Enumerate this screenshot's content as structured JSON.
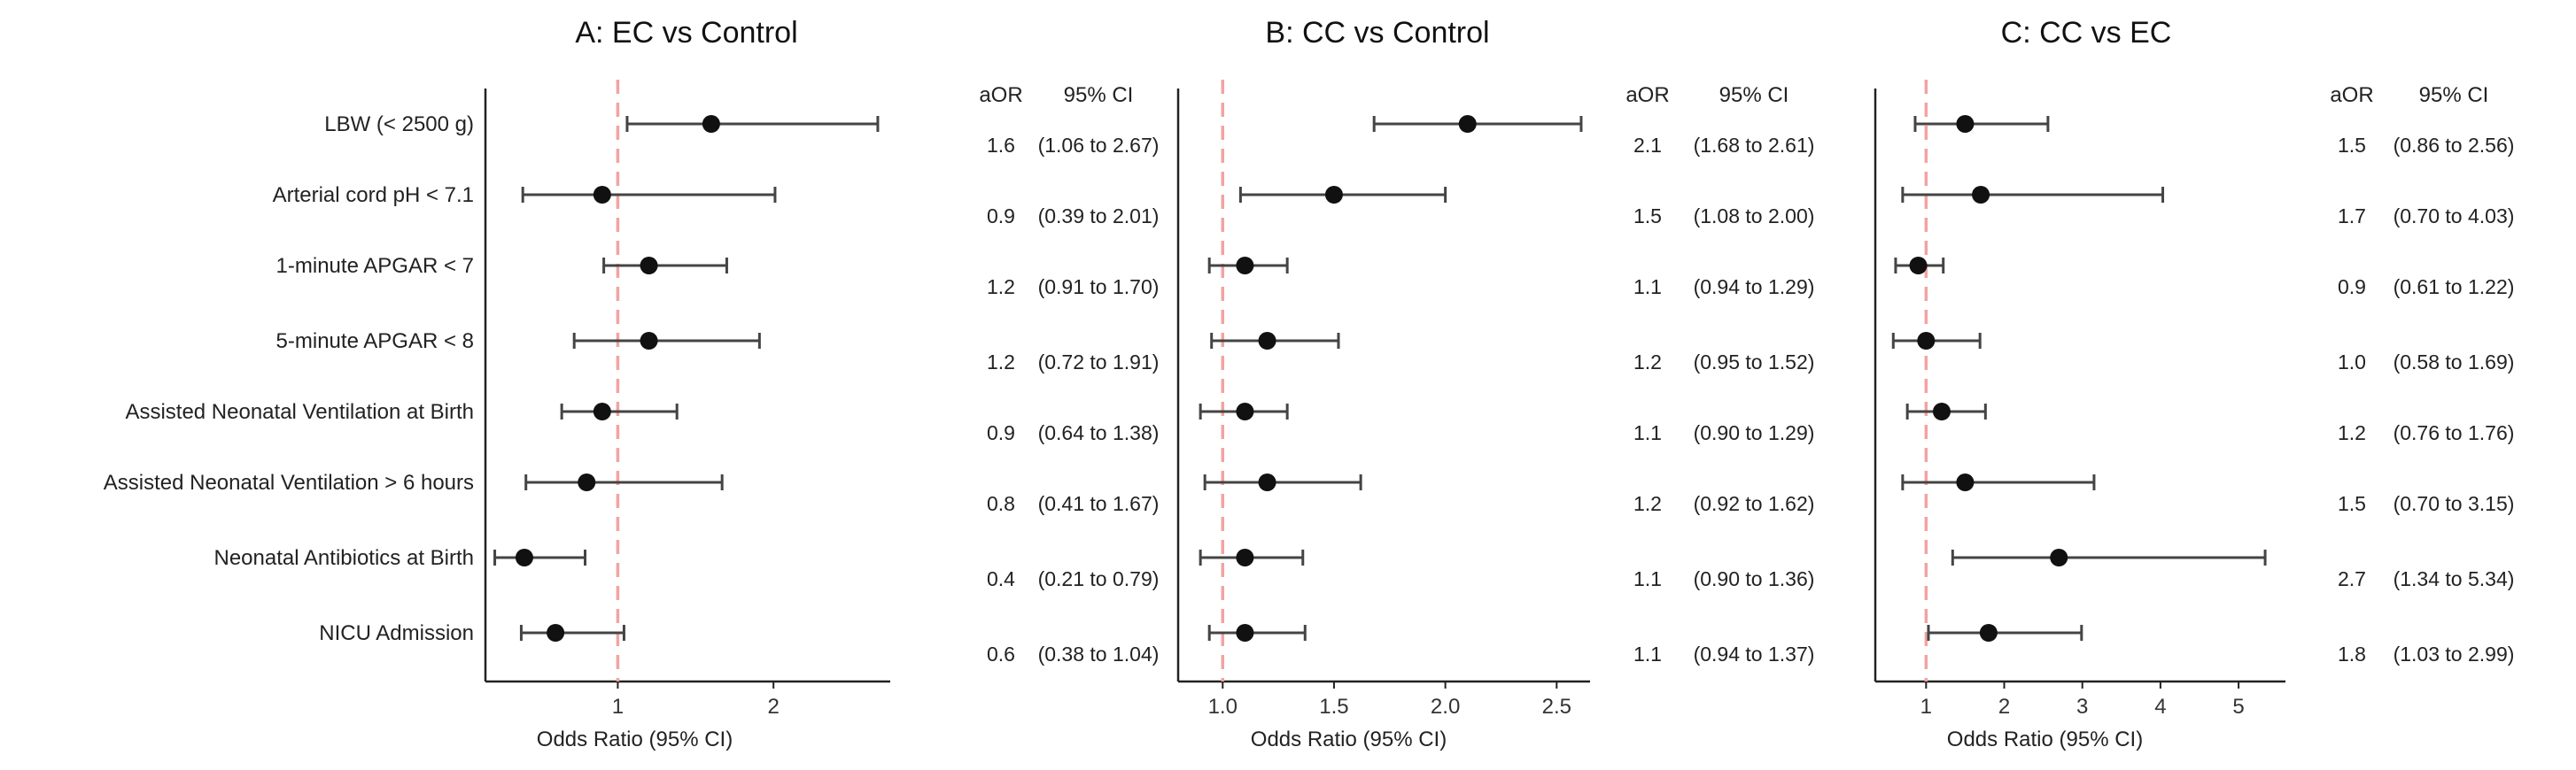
{
  "outcomes": [
    "LBW (< 2500 g)",
    "Arterial cord pH < 7.1",
    "1-minute APGAR < 7",
    "5-minute APGAR < 8",
    "Assisted Neonatal Ventilation at Birth",
    "Assisted Neonatal Ventilation > 6 hours",
    "Neonatal Antibiotics at Birth",
    "NICU Admission"
  ],
  "column_headers": {
    "aor": "aOR",
    "ci": "95% CI"
  },
  "colors": {
    "point": "#111111",
    "ci_line": "#444444",
    "reference_line": "#f2a3a3",
    "axis": "#222222"
  },
  "chart_data": [
    {
      "type": "forest",
      "title": "A: EC vs Control",
      "xlabel": "Odds Ratio (95% CI)",
      "ylabel": "",
      "reference_line": 1,
      "xlim": [
        0.15,
        2.75
      ],
      "x_ticks": [
        1,
        2
      ],
      "x_tick_labels": [
        "1",
        "2"
      ],
      "categories": [
        "LBW (< 2500 g)",
        "Arterial cord pH < 7.1",
        "1-minute APGAR < 7",
        "5-minute APGAR < 8",
        "Assisted Neonatal Ventilation at Birth",
        "Assisted Neonatal Ventilation > 6 hours",
        "Neonatal Antibiotics at Birth",
        "NICU Admission"
      ],
      "aor": [
        1.6,
        0.9,
        1.2,
        1.2,
        0.9,
        0.8,
        0.4,
        0.6
      ],
      "lower": [
        1.06,
        0.39,
        0.91,
        0.72,
        0.64,
        0.41,
        0.21,
        0.38
      ],
      "upper": [
        2.67,
        2.01,
        1.7,
        1.91,
        1.38,
        1.67,
        0.79,
        1.04
      ],
      "aor_labels": [
        "1.6",
        "0.9",
        "1.2",
        "1.2",
        "0.9",
        "0.8",
        "0.4",
        "0.6"
      ],
      "ci_labels": [
        "(1.06 to 2.67)",
        "(0.39 to 2.01)",
        "(0.91 to 1.70)",
        "(0.72 to 1.91)",
        "(0.64 to 1.38)",
        "(0.41 to 1.67)",
        "(0.21 to 0.79)",
        "(0.38 to 1.04)"
      ]
    },
    {
      "type": "forest",
      "title": "B: CC vs Control",
      "xlabel": "Odds Ratio (95% CI)",
      "ylabel": "",
      "reference_line": 1,
      "xlim": [
        0.8,
        2.65
      ],
      "x_ticks": [
        1.0,
        1.5,
        2.0,
        2.5
      ],
      "x_tick_labels": [
        "1.0",
        "1.5",
        "2.0",
        "2.5"
      ],
      "categories": [
        "LBW (< 2500 g)",
        "Arterial cord pH < 7.1",
        "1-minute APGAR < 7",
        "5-minute APGAR < 8",
        "Assisted Neonatal Ventilation at Birth",
        "Assisted Neonatal Ventilation > 6 hours",
        "Neonatal Antibiotics at Birth",
        "NICU Admission"
      ],
      "aor": [
        2.1,
        1.5,
        1.1,
        1.2,
        1.1,
        1.2,
        1.1,
        1.1
      ],
      "lower": [
        1.68,
        1.08,
        0.94,
        0.95,
        0.9,
        0.92,
        0.9,
        0.94
      ],
      "upper": [
        2.61,
        2.0,
        1.29,
        1.52,
        1.29,
        1.62,
        1.36,
        1.37
      ],
      "aor_labels": [
        "2.1",
        "1.5",
        "1.1",
        "1.2",
        "1.1",
        "1.2",
        "1.1",
        "1.1"
      ],
      "ci_labels": [
        "(1.68 to 2.61)",
        "(1.08 to 2.00)",
        "(0.94 to 1.29)",
        "(0.95 to 1.52)",
        "(0.90 to 1.29)",
        "(0.92 to 1.62)",
        "(0.90 to 1.36)",
        "(0.94 to 1.37)"
      ]
    },
    {
      "type": "forest",
      "title": "C: CC vs EC",
      "xlabel": "Odds Ratio (95% CI)",
      "ylabel": "",
      "reference_line": 1,
      "xlim": [
        0.35,
        5.6
      ],
      "x_ticks": [
        1,
        2,
        3,
        4,
        5
      ],
      "x_tick_labels": [
        "1",
        "2",
        "3",
        "4",
        "5"
      ],
      "categories": [
        "LBW (< 2500 g)",
        "Arterial cord pH < 7.1",
        "1-minute APGAR < 7",
        "5-minute APGAR < 8",
        "Assisted Neonatal Ventilation at Birth",
        "Assisted Neonatal Ventilation > 6 hours",
        "Neonatal Antibiotics at Birth",
        "NICU Admission"
      ],
      "aor": [
        1.5,
        1.7,
        0.9,
        1.0,
        1.2,
        1.5,
        2.7,
        1.8
      ],
      "lower": [
        0.86,
        0.7,
        0.61,
        0.58,
        0.76,
        0.7,
        1.34,
        1.03
      ],
      "upper": [
        2.56,
        4.03,
        1.22,
        1.69,
        1.76,
        3.15,
        5.34,
        2.99
      ],
      "aor_labels": [
        "1.5",
        "1.7",
        "0.9",
        "1.0",
        "1.2",
        "1.5",
        "2.7",
        "1.8"
      ],
      "ci_labels": [
        "(0.86 to 2.56)",
        "(0.70 to 4.03)",
        "(0.61 to 1.22)",
        "(0.58 to 1.69)",
        "(0.76 to 1.76)",
        "(0.70 to 3.15)",
        "(1.34 to 5.34)",
        "(1.03 to 2.99)"
      ]
    }
  ]
}
